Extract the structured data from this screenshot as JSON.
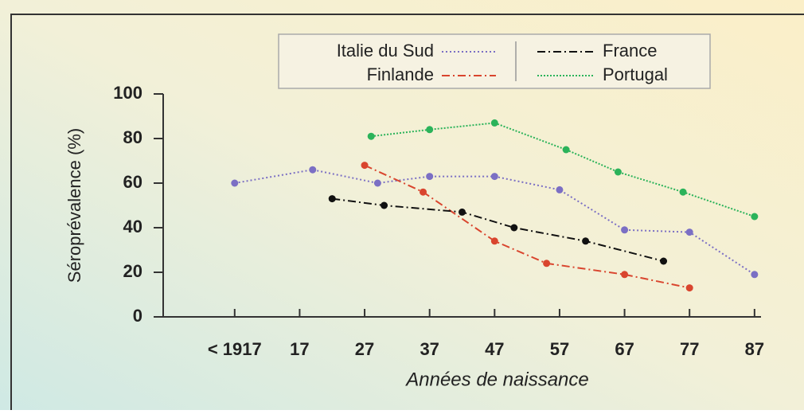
{
  "chart_data": {
    "type": "line",
    "xlabel": "Années de naissance",
    "ylabel": "Séroprévalence (%)",
    "xlim": [
      1896,
      1988
    ],
    "xticks": [
      {
        "value": 1907,
        "label": "< 1917"
      },
      {
        "value": 1917,
        "label": "17"
      },
      {
        "value": 1927,
        "label": "27"
      },
      {
        "value": 1937,
        "label": "37"
      },
      {
        "value": 1947,
        "label": "47"
      },
      {
        "value": 1957,
        "label": "57"
      },
      {
        "value": 1967,
        "label": "67"
      },
      {
        "value": 1977,
        "label": "77"
      },
      {
        "value": 1987,
        "label": "87"
      }
    ],
    "ylim": [
      0,
      100
    ],
    "yticks": [
      0,
      20,
      40,
      60,
      80,
      100
    ],
    "series": [
      {
        "name": "Italie du Sud",
        "color": "#7b6fc4",
        "dash": "2 3",
        "x": [
          1907,
          1919,
          1929,
          1937,
          1947,
          1957,
          1967,
          1977,
          1987
        ],
        "values": [
          60,
          66,
          60,
          63,
          63,
          57,
          39,
          38,
          19
        ]
      },
      {
        "name": "Finlande",
        "color": "#d9452e",
        "dash": "10 4 2 4",
        "x": [
          1927,
          1936,
          1947,
          1955,
          1967,
          1977
        ],
        "values": [
          68,
          56,
          34,
          24,
          19,
          13
        ]
      },
      {
        "name": "France",
        "color": "#111111",
        "dash": "10 4 2 4",
        "x": [
          1922,
          1930,
          1942,
          1950,
          1961,
          1973
        ],
        "values": [
          53,
          50,
          47,
          40,
          34,
          25
        ]
      },
      {
        "name": "Portugal",
        "color": "#2bb35a",
        "dash": "2 2",
        "x": [
          1928,
          1937,
          1947,
          1958,
          1966,
          1976,
          1987
        ],
        "values": [
          81,
          84,
          87,
          75,
          65,
          56,
          45
        ]
      }
    ]
  }
}
